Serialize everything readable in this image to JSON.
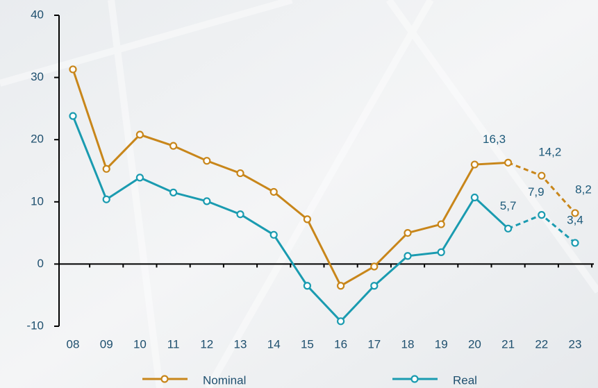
{
  "chart_data": {
    "type": "line",
    "categories": [
      "08",
      "09",
      "10",
      "11",
      "12",
      "13",
      "14",
      "15",
      "16",
      "17",
      "18",
      "19",
      "20",
      "21",
      "22",
      "23"
    ],
    "series": [
      {
        "name": "Nominal",
        "color": "#c8861a",
        "values": [
          31.3,
          15.3,
          20.8,
          19.0,
          16.6,
          14.6,
          11.6,
          7.2,
          -3.5,
          -0.4,
          5.0,
          6.4,
          16.0,
          16.3,
          14.2,
          8.2
        ],
        "value_labels": [
          null,
          null,
          null,
          null,
          null,
          null,
          null,
          null,
          null,
          null,
          null,
          null,
          null,
          "16,3",
          "14,2",
          "8,2"
        ]
      },
      {
        "name": "Real",
        "color": "#1a9bb0",
        "values": [
          23.8,
          10.4,
          13.9,
          11.5,
          10.1,
          8.0,
          4.7,
          -3.5,
          -9.2,
          -3.5,
          1.3,
          1.9,
          10.7,
          5.7,
          7.9,
          3.4
        ],
        "value_labels": [
          null,
          null,
          null,
          null,
          null,
          null,
          null,
          null,
          null,
          null,
          null,
          null,
          null,
          "5,7",
          "7,9",
          "3,4"
        ]
      }
    ],
    "dashed_from": 13,
    "ylim": [
      -10,
      40
    ],
    "yticks": [
      -10,
      0,
      10,
      20,
      30,
      40
    ],
    "legend": "bottom"
  }
}
